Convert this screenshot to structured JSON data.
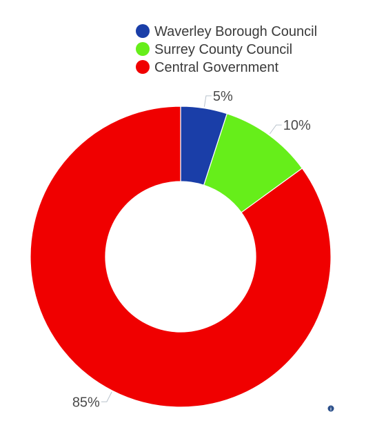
{
  "chart_data": {
    "type": "pie",
    "donut": true,
    "title": "",
    "legend_position": "top",
    "slices": [
      {
        "label": "Waverley Borough Council",
        "value": 5,
        "display": "5%",
        "color": "#1a3ea8"
      },
      {
        "label": "Surrey County Council",
        "value": 10,
        "display": "10%",
        "color": "#66ee1a"
      },
      {
        "label": "Central Government",
        "value": 85,
        "display": "85%",
        "color": "#f00000"
      }
    ]
  },
  "info_icon": "info-icon"
}
